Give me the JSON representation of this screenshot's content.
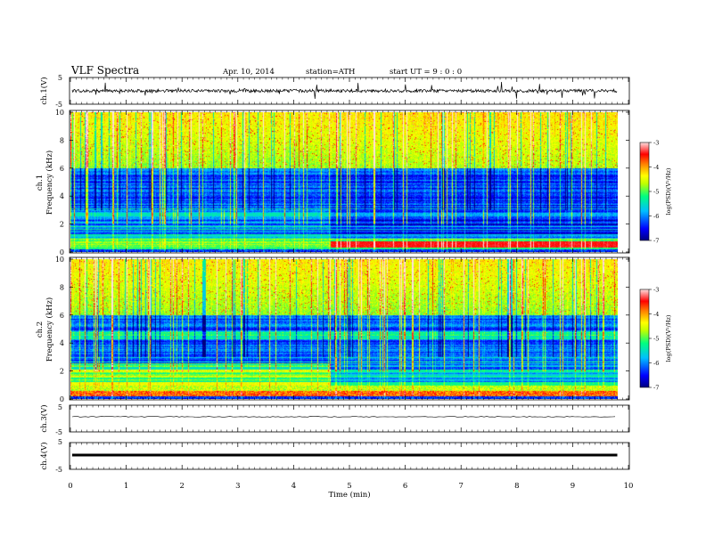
{
  "header": {
    "title": "VLF  Spectra",
    "date": "Apr. 10, 2014",
    "station": "station=ATH",
    "start_ut": "start  UT  =    9  : 0  : 0"
  },
  "colors": {
    "colormap": [
      "#000080",
      "#0000ff",
      "#00bfff",
      "#00ff80",
      "#bfff00",
      "#ffff00",
      "#ff8000",
      "#ff0000",
      "#ffd0d0"
    ],
    "trace": "#000000"
  },
  "chart_data": [
    {
      "type": "line",
      "panel": "ch1-waveform",
      "ylabel": "ch.1(V)",
      "y_ticks": [
        "5",
        "-5"
      ],
      "ylim": [
        -5,
        5
      ],
      "x": [
        0,
        1,
        2,
        3,
        4,
        5,
        6,
        7,
        8,
        9,
        9.8
      ],
      "y": [
        0.3,
        0.1,
        0.2,
        0.0,
        0.2,
        0.1,
        0.3,
        0.1,
        0.2,
        0.0,
        0.1
      ]
    },
    {
      "type": "heatmap",
      "panel": "ch1-spectrogram",
      "ylabel": "ch.1\nFrequency  (kHz)",
      "y_ticks": [
        "0",
        "2",
        "4",
        "6",
        "8",
        "10"
      ],
      "ylim": [
        0,
        10
      ],
      "colorbar_label": "log(PSD)(V²/Hz)",
      "colorbar_ticks": [
        "-3",
        "-4",
        "-5",
        "-6",
        "-7"
      ],
      "clim": [
        -7,
        -3
      ],
      "transition_time_min": 4.65,
      "low_band_khz": [
        0.3,
        1.0
      ]
    },
    {
      "type": "heatmap",
      "panel": "ch2-spectrogram",
      "ylabel": "ch.2\nFrequency  (kHz)",
      "y_ticks": [
        "0",
        "2",
        "4",
        "6",
        "8",
        "10"
      ],
      "ylim": [
        0,
        10
      ],
      "colorbar_label": "log(PSD)(V²/Hz)",
      "colorbar_ticks": [
        "-3",
        "-4",
        "-5",
        "-6",
        "-7"
      ],
      "clim": [
        -7,
        -3
      ],
      "transition_time_min": 4.65
    },
    {
      "type": "line",
      "panel": "ch3-waveform",
      "ylabel": "ch.3(V)",
      "y_ticks": [
        "5",
        "-5"
      ],
      "ylim": [
        -5,
        5
      ],
      "x": [
        0,
        9.8
      ],
      "y": [
        0,
        0
      ]
    },
    {
      "type": "line",
      "panel": "ch4-waveform",
      "ylabel": "ch.4(V)",
      "y_ticks": [
        "5",
        "-5"
      ],
      "ylim": [
        -5,
        5
      ],
      "x": [
        0,
        9.8
      ],
      "y": [
        0,
        0
      ]
    }
  ],
  "x_axis": {
    "label": "Time  (min)",
    "ticks": [
      "0",
      "1",
      "2",
      "3",
      "4",
      "5",
      "6",
      "7",
      "8",
      "9",
      "10"
    ],
    "xlim": [
      0,
      10
    ],
    "data_end": 9.8
  }
}
